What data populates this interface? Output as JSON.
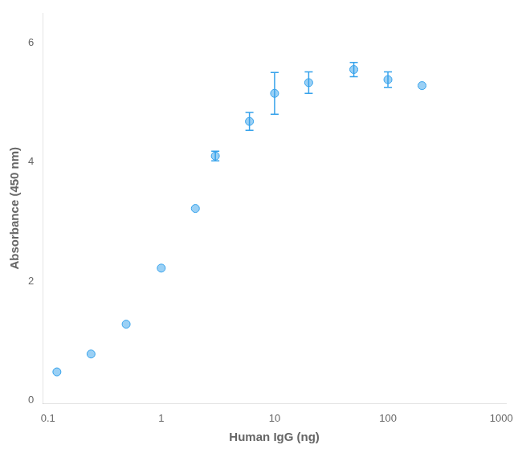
{
  "chart_data": {
    "type": "scatter",
    "x": [
      0.12,
      0.24,
      0.49,
      1.0,
      2.0,
      3.0,
      6.0,
      10.0,
      20.0,
      50.0,
      100.0,
      200.0
    ],
    "values": [
      0.48,
      0.78,
      1.28,
      2.22,
      3.22,
      4.1,
      4.68,
      5.15,
      5.33,
      5.55,
      5.38,
      5.28
    ],
    "errors": [
      0.0,
      0.0,
      0.0,
      0.0,
      0.0,
      0.08,
      0.15,
      0.35,
      0.18,
      0.12,
      0.13,
      0.0
    ],
    "xlabel": "Human IgG (ng)",
    "ylabel": "Absorbance (450 nm)",
    "log": "x",
    "xlim": [
      0.09,
      1100
    ],
    "xticks": [
      0.1,
      1,
      10,
      100,
      1000
    ],
    "ylim": [
      -0.05,
      6.5
    ],
    "yticks": [
      0,
      2,
      4,
      6
    ],
    "grid": false
  }
}
